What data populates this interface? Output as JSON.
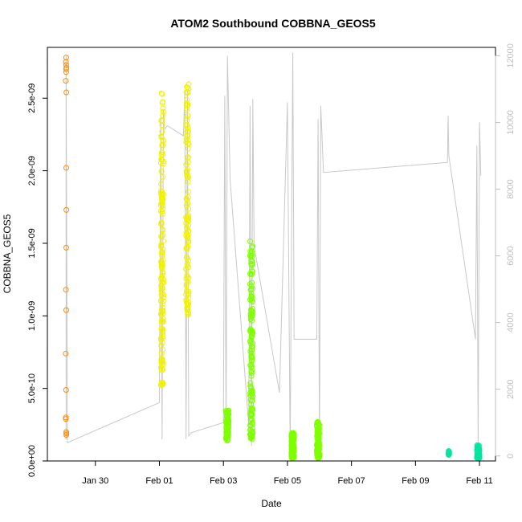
{
  "chart_data": {
    "type": "scatter",
    "title": "ATOM2 Southbound COBBNA_GEOS5",
    "xlabel": "Date",
    "ylabel": "COBBNA_GEOS5",
    "ylim": [
      0,
      2.85e-09
    ],
    "y2lim": [
      -150,
      12250
    ],
    "xlim": [
      "2016-01-28 12:00",
      "2016-02-11 12:00"
    ],
    "x_tick_labels": [
      "Jan 30",
      "Feb 01",
      "Feb 03",
      "Feb 05",
      "Feb 07",
      "Feb 09",
      "Feb 11"
    ],
    "y_tick_labels": [
      "0.0e+00",
      "5.0e-10",
      "1.0e-09",
      "1.5e-09",
      "2.0e-09",
      "2.5e-09"
    ],
    "y2_tick_labels": [
      "0",
      "2000",
      "4000",
      "6000",
      "8000",
      "10000",
      "12000"
    ],
    "grid": false,
    "series": [
      {
        "color": "#ff8c00",
        "clusters": [
          {
            "x": "2016-01-29 02:00",
            "spread_hours": 0.6,
            "y": [
              2.78e-09,
              2.75e-09,
              2.73e-09,
              2.71e-09,
              2.7e-09,
              2.68e-09,
              2.62e-09,
              2.54e-09,
              2.02e-09,
              1.73e-09,
              1.47e-09,
              1.18e-09,
              1.04e-09,
              7.4e-10,
              4.9e-10,
              3e-10,
              2.9e-10,
              2e-10,
              1.9e-10,
              1.8e-10
            ]
          }
        ]
      },
      {
        "color": "#f2f200",
        "clusters": [
          {
            "x": "2016-02-01 02:00",
            "spread_hours": 2.0,
            "ymin": 5.2e-10,
            "ymax": 2.54e-09,
            "n": 150
          },
          {
            "x": "2016-02-01 21:00",
            "spread_hours": 2.0,
            "ymin": 1e-09,
            "ymax": 2.61e-09,
            "n": 120
          }
        ]
      },
      {
        "color": "#7fff00",
        "clusters": [
          {
            "x": "2016-02-03 03:00",
            "spread_hours": 2.0,
            "ymin": 1.4e-10,
            "ymax": 3.5e-10,
            "n": 80
          },
          {
            "x": "2016-02-03 21:00",
            "spread_hours": 2.0,
            "ymin": 1.5e-10,
            "ymax": 1.55e-09,
            "n": 150
          },
          {
            "x": "2016-02-05 04:00",
            "spread_hours": 2.0,
            "ymin": 2e-11,
            "ymax": 2e-10,
            "n": 120
          },
          {
            "x": "2016-02-05 23:00",
            "spread_hours": 2.0,
            "ymin": 2e-11,
            "ymax": 2.7e-10,
            "n": 120
          }
        ]
      },
      {
        "color": "#00e5a0",
        "clusters": [
          {
            "x": "2016-02-10 01:00",
            "spread_hours": 0.5,
            "ymin": 4e-11,
            "ymax": 7e-11,
            "n": 15
          },
          {
            "x": "2016-02-10 23:00",
            "spread_hours": 2.0,
            "ymin": 2e-11,
            "ymax": 1.1e-10,
            "n": 60
          }
        ]
      }
    ],
    "altitude_line": {
      "color": "#c8c8c8",
      "axis": "right",
      "points": [
        [
          "2016-01-29 02:00",
          500
        ],
        [
          "2016-01-29 02:00",
          12000
        ],
        [
          "2016-01-29 03:00",
          400
        ],
        [
          "2016-02-01 00:00",
          1600
        ],
        [
          "2016-02-01 01:00",
          10200
        ],
        [
          "2016-02-01 02:00",
          500
        ],
        [
          "2016-02-01 03:00",
          10400
        ],
        [
          "2016-02-01 04:00",
          9800
        ],
        [
          "2016-02-01 06:00",
          9900
        ],
        [
          "2016-02-01 18:00",
          9600
        ],
        [
          "2016-02-01 19:00",
          10900
        ],
        [
          "2016-02-01 20:00",
          500
        ],
        [
          "2016-02-01 21:00",
          11000
        ],
        [
          "2016-02-01 22:00",
          600
        ],
        [
          "2016-02-02 00:00",
          700
        ],
        [
          "2016-02-03 00:00",
          1000
        ],
        [
          "2016-02-03 01:00",
          10800
        ],
        [
          "2016-02-03 02:00",
          400
        ],
        [
          "2016-02-03 03:00",
          12000
        ],
        [
          "2016-02-03 05:00",
          8300
        ],
        [
          "2016-02-03 19:00",
          900
        ],
        [
          "2016-02-03 20:00",
          10500
        ],
        [
          "2016-02-03 21:00",
          300
        ],
        [
          "2016-02-03 22:00",
          10700
        ],
        [
          "2016-02-03 23:00",
          6300
        ],
        [
          "2016-02-04 18:00",
          1900
        ],
        [
          "2016-02-05 00:00",
          10600
        ],
        [
          "2016-02-05 02:00",
          200
        ],
        [
          "2016-02-05 04:00",
          12100
        ],
        [
          "2016-02-05 05:00",
          3500
        ],
        [
          "2016-02-05 22:00",
          3500
        ],
        [
          "2016-02-05 23:00",
          10100
        ],
        [
          "2016-02-06 00:00",
          200
        ],
        [
          "2016-02-06 01:00",
          10500
        ],
        [
          "2016-02-06 03:00",
          8500
        ],
        [
          "2016-02-10 00:00",
          8800
        ],
        [
          "2016-02-10 00:30",
          10200
        ],
        [
          "2016-02-10 01:00",
          9000
        ],
        [
          "2016-02-10 21:00",
          3500
        ],
        [
          "2016-02-10 22:00",
          9300
        ],
        [
          "2016-02-10 23:00",
          300
        ],
        [
          "2016-02-11 00:00",
          10000
        ],
        [
          "2016-02-11 01:00",
          8400
        ]
      ]
    }
  }
}
